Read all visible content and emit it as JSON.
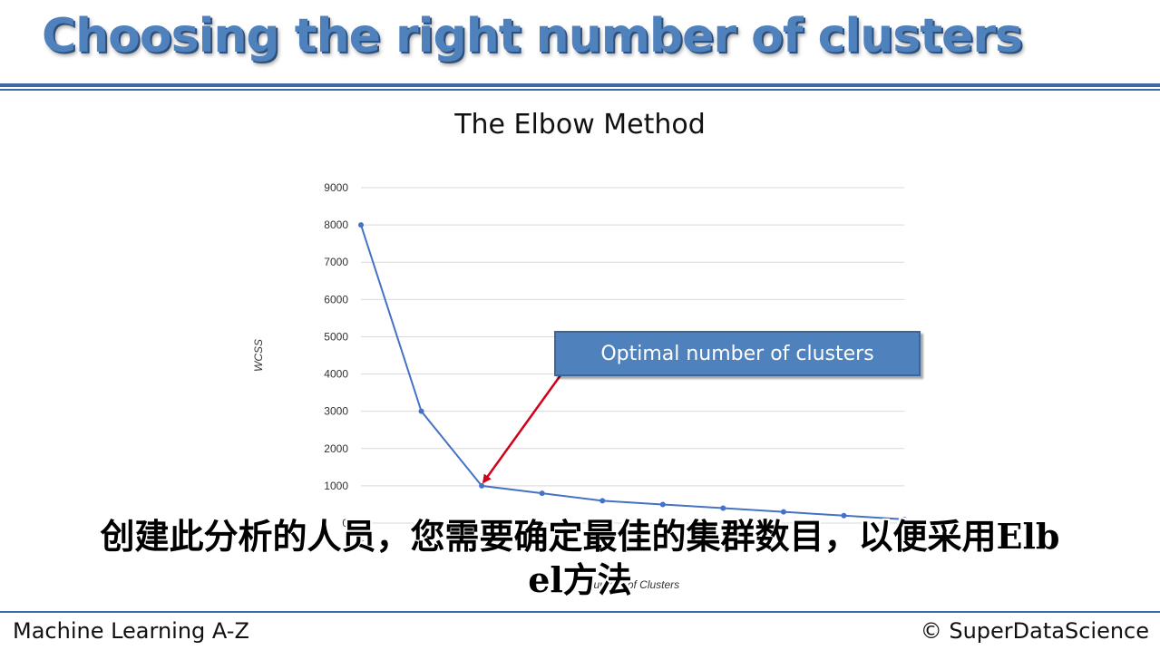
{
  "slide": {
    "title": "Choosing the right number of clusters",
    "callout": "Optimal number of clusters",
    "subtitle_line1": "创建此分析的人员，您需要确定最佳的集群数目，以便采用Elb",
    "subtitle_line2": "el方法"
  },
  "footer": {
    "left": "Machine Learning A-Z",
    "right": "© SuperDataScience"
  },
  "colors": {
    "title": "#4f81bd",
    "line": "#4472c4",
    "arrow": "#d0021b",
    "rule": "#3e6aa3"
  },
  "chart_data": {
    "type": "line",
    "title": "The Elbow Method",
    "xlabel": "Number of Clusters",
    "ylabel": "WCSS",
    "x": [
      1,
      2,
      3,
      4,
      5,
      6,
      7,
      8,
      9,
      10
    ],
    "x_tick_labels_visible": [
      "1",
      "10"
    ],
    "y_ticks": [
      0,
      1000,
      2000,
      3000,
      4000,
      5000,
      6000,
      7000,
      8000,
      9000
    ],
    "series": [
      {
        "values": [
          8000,
          3000,
          1000,
          800,
          600,
          500,
          400,
          300,
          200,
          100
        ]
      }
    ],
    "ylim": [
      0,
      9000
    ],
    "xlim": [
      1,
      10
    ],
    "grid": true,
    "annotation": {
      "text": "Optimal number of clusters",
      "points_to_x": 3,
      "points_to_y": 1000
    }
  }
}
